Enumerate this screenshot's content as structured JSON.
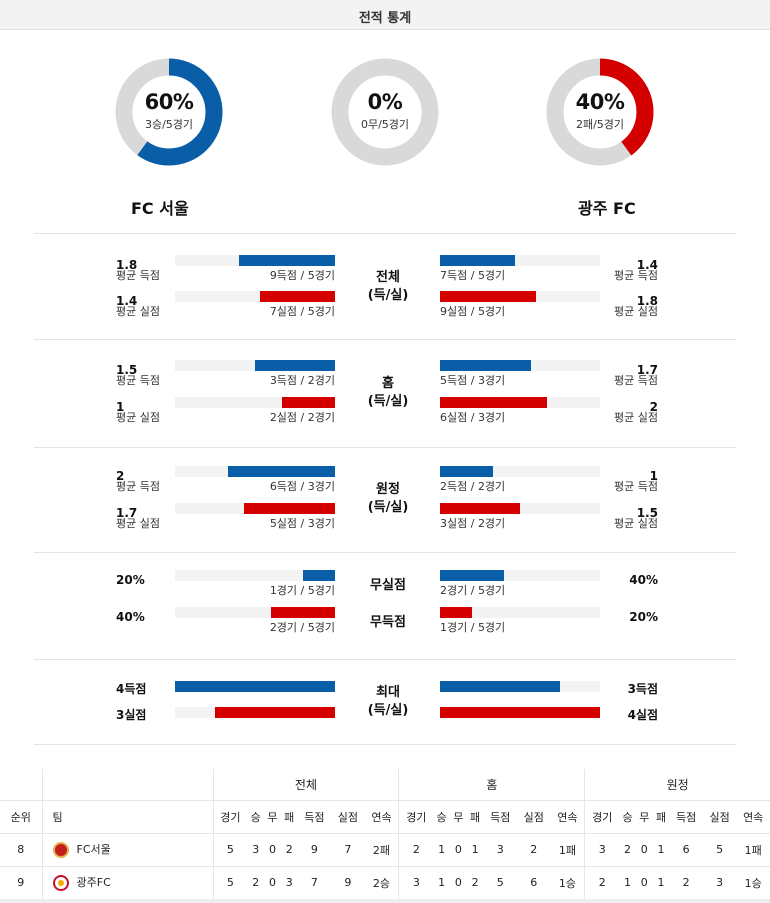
{
  "title": "전적 통계",
  "donuts": [
    {
      "pct_label": "60%",
      "fraction": 0.6,
      "sub": "3승/5경기",
      "color": "#0a5ea8"
    },
    {
      "pct_label": "0%",
      "fraction": 0.0,
      "sub": "0무/5경기",
      "color": "#0a5ea8"
    },
    {
      "pct_label": "40%",
      "fraction": 0.4,
      "sub": "2패/5경기",
      "color": "#d40000"
    }
  ],
  "teams": {
    "home": "FC 서울",
    "away": "광주 FC"
  },
  "sections": {
    "total": {
      "mid": [
        "전체",
        "(득/실)"
      ],
      "left": [
        {
          "num": "1.8",
          "lbl": "평균 득점",
          "cap": "9득점 / 5경기",
          "fraction": 0.6
        },
        {
          "num": "1.4",
          "lbl": "평균 실점",
          "cap": "7실점 / 5경기",
          "fraction": 0.47
        }
      ],
      "right": [
        {
          "num": "1.4",
          "lbl": "평균 득점",
          "cap": "7득점 / 5경기",
          "fraction": 0.47
        },
        {
          "num": "1.8",
          "lbl": "평균 실점",
          "cap": "9실점 / 5경기",
          "fraction": 0.6
        }
      ]
    },
    "home": {
      "mid": [
        "홈",
        "(득/실)"
      ],
      "left": [
        {
          "num": "1.5",
          "lbl": "평균 득점",
          "cap": "3득점 / 2경기",
          "fraction": 0.5
        },
        {
          "num": "1",
          "lbl": "평균 실점",
          "cap": "2실점 / 2경기",
          "fraction": 0.33
        }
      ],
      "right": [
        {
          "num": "1.7",
          "lbl": "평균 득점",
          "cap": "5득점 / 3경기",
          "fraction": 0.57
        },
        {
          "num": "2",
          "lbl": "평균 실점",
          "cap": "6실점 / 3경기",
          "fraction": 0.67
        }
      ]
    },
    "away": {
      "mid": [
        "원정",
        "(득/실)"
      ],
      "left": [
        {
          "num": "2",
          "lbl": "평균 득점",
          "cap": "6득점 / 3경기",
          "fraction": 0.67
        },
        {
          "num": "1.7",
          "lbl": "평균 실점",
          "cap": "5실점 / 3경기",
          "fraction": 0.57
        }
      ],
      "right": [
        {
          "num": "1",
          "lbl": "평균 득점",
          "cap": "2득점 / 2경기",
          "fraction": 0.33
        },
        {
          "num": "1.5",
          "lbl": "평균 실점",
          "cap": "3실점 / 2경기",
          "fraction": 0.5
        }
      ]
    },
    "clean": {
      "mid": [
        "무실점",
        "무득점"
      ],
      "left": [
        {
          "num": "20%",
          "cap": "1경기 / 5경기",
          "fraction": 0.2
        },
        {
          "num": "40%",
          "cap": "2경기 / 5경기",
          "fraction": 0.4
        }
      ],
      "right": [
        {
          "num": "40%",
          "cap": "2경기 / 5경기",
          "fraction": 0.4
        },
        {
          "num": "20%",
          "cap": "1경기 / 5경기",
          "fraction": 0.2
        }
      ]
    },
    "max": {
      "mid": [
        "최대",
        "(득/실)"
      ],
      "left": [
        {
          "num": "4득점",
          "fraction": 1.0
        },
        {
          "num": "3실점",
          "fraction": 0.75
        }
      ],
      "right": [
        {
          "num": "3득점",
          "fraction": 0.75
        },
        {
          "num": "4실점",
          "fraction": 1.0
        }
      ]
    }
  },
  "table": {
    "groups": [
      "전체",
      "홈",
      "원정"
    ],
    "rank_header": "순위",
    "team_header": "팀",
    "cols": [
      "경기",
      "승",
      "무",
      "패",
      "득점",
      "실점",
      "연속"
    ],
    "rows": [
      {
        "rank": "8",
        "team": "FC서울",
        "logo": "fc-seoul-logo",
        "total": [
          "5",
          "3",
          "0",
          "2",
          "9",
          "7",
          "2패"
        ],
        "home": [
          "2",
          "1",
          "0",
          "1",
          "3",
          "2",
          "1패"
        ],
        "away": [
          "3",
          "2",
          "0",
          "1",
          "6",
          "5",
          "1패"
        ]
      },
      {
        "rank": "9",
        "team": "광주FC",
        "logo": "gwangju-fc-logo",
        "total": [
          "5",
          "2",
          "0",
          "3",
          "7",
          "9",
          "2승"
        ],
        "home": [
          "3",
          "1",
          "0",
          "2",
          "5",
          "6",
          "1승"
        ],
        "away": [
          "2",
          "1",
          "0",
          "1",
          "2",
          "3",
          "1승"
        ]
      }
    ]
  }
}
